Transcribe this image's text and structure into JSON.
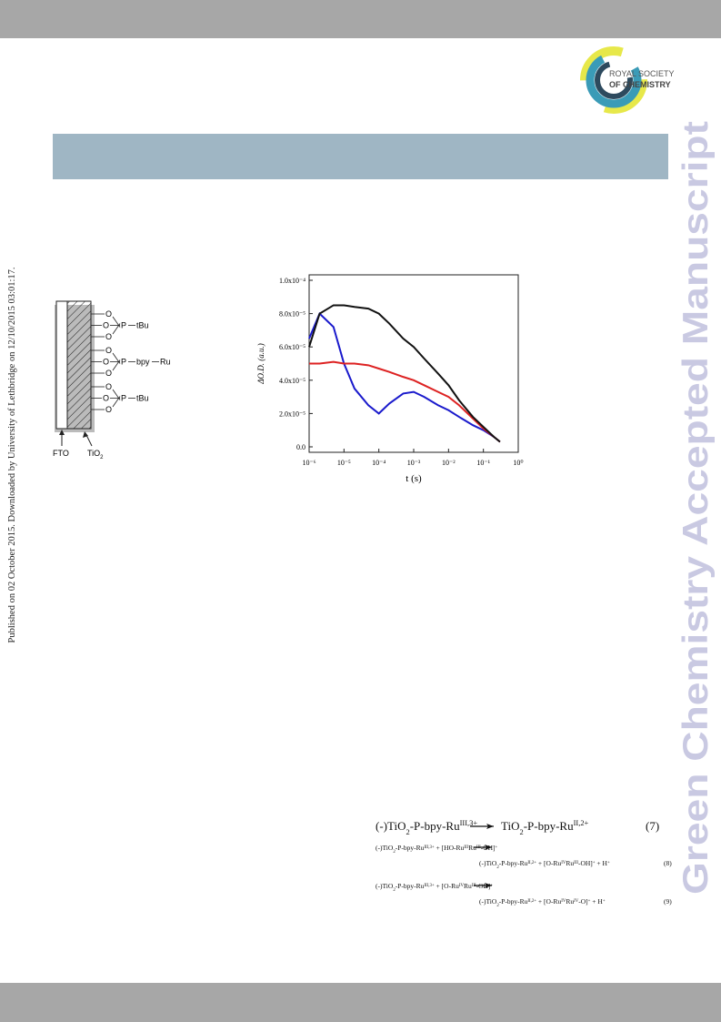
{
  "header": {
    "logo_line1": "ROYAL SOCIETY",
    "logo_line2": "OF CHEMISTRY"
  },
  "side_note": "Published on 02 October 2015. Downloaded by University of Lethbridge on 12/10/2015 03:01:17.",
  "watermark": "Green Chemistry Accepted Manuscript",
  "diagram": {
    "rows": [
      {
        "o": [
          "O",
          "O",
          "O"
        ],
        "p": "P",
        "group": "tBu"
      },
      {
        "o": [
          "O",
          "O",
          "O"
        ],
        "p": "P",
        "group": "bpy",
        "end": "Ru"
      },
      {
        "o": [
          "O",
          "O",
          "O"
        ],
        "p": "P",
        "group": "tBu"
      }
    ],
    "fto": "FTO",
    "tio2": "TiO",
    "tio2_sub": "2"
  },
  "chart_data": {
    "type": "line",
    "x": [
      1e-06,
      2e-06,
      5e-06,
      1e-05,
      2e-05,
      5e-05,
      0.0001,
      0.0002,
      0.0005,
      0.001,
      0.002,
      0.005,
      0.01,
      0.02,
      0.05,
      0.1,
      0.2,
      0.3
    ],
    "xlabel": "t (s)",
    "ylabel": "ΔO.D. (a.u.)",
    "xlog": true,
    "xlim": [
      1e-06,
      1
    ],
    "ylim": [
      0,
      0.0001
    ],
    "xticks": [
      {
        "value": 1e-06,
        "label": "10⁻⁶"
      },
      {
        "value": 1e-05,
        "label": "10⁻⁵"
      },
      {
        "value": 0.0001,
        "label": "10⁻⁴"
      },
      {
        "value": 0.001,
        "label": "10⁻³"
      },
      {
        "value": 0.01,
        "label": "10⁻²"
      },
      {
        "value": 0.1,
        "label": "10⁻¹"
      },
      {
        "value": 1,
        "label": "10⁰"
      }
    ],
    "yticks": [
      {
        "value": 0,
        "label": "0.0"
      },
      {
        "value": 2e-05,
        "label": "2.0x10⁻⁵"
      },
      {
        "value": 4e-05,
        "label": "4.0x10⁻⁵"
      },
      {
        "value": 6e-05,
        "label": "6.0x10⁻⁵"
      },
      {
        "value": 8e-05,
        "label": "8.0x10⁻⁵"
      },
      {
        "value": 0.0001,
        "label": "1.0x10⁻⁴"
      }
    ],
    "series": [
      {
        "color": "#1a1acc",
        "values": [
          6.5e-05,
          8e-05,
          7.2e-05,
          5e-05,
          3.5e-05,
          2.5e-05,
          2e-05,
          2.6e-05,
          3.2e-05,
          3.3e-05,
          3e-05,
          2.5e-05,
          2.2e-05,
          1.8e-05,
          1.3e-05,
          1e-05,
          6e-06,
          3e-06
        ]
      },
      {
        "color": "#dd2222",
        "values": [
          5e-05,
          5e-05,
          5.1e-05,
          5e-05,
          5e-05,
          4.9e-05,
          4.7e-05,
          4.5e-05,
          4.2e-05,
          4e-05,
          3.7e-05,
          3.3e-05,
          3e-05,
          2.5e-05,
          1.7e-05,
          1.1e-05,
          6e-06,
          3e-06
        ]
      },
      {
        "color": "#111111",
        "values": [
          6e-05,
          8e-05,
          8.5e-05,
          8.5e-05,
          8.4e-05,
          8.3e-05,
          8e-05,
          7.4e-05,
          6.5e-05,
          6e-05,
          5.3e-05,
          4.4e-05,
          3.7e-05,
          2.8e-05,
          1.8e-05,
          1.2e-05,
          6e-06,
          3e-06
        ]
      }
    ]
  },
  "equations": [
    {
      "lhs": [
        [
          "(-)TiO",
          "n"
        ],
        [
          "2",
          "sub"
        ],
        [
          "-P-bpy-Ru",
          "n"
        ],
        [
          "III,3+",
          "sup"
        ]
      ],
      "rhs": [
        [
          "TiO",
          "n"
        ],
        [
          "2",
          "sub"
        ],
        [
          "-P-bpy-Ru",
          "n"
        ],
        [
          "II,2+",
          "sup"
        ]
      ],
      "number": "(7)"
    },
    {
      "lhs": [
        [
          "(-)TiO",
          "n"
        ],
        [
          "2",
          "sub"
        ],
        [
          "-P-bpy-Ru",
          "n"
        ],
        [
          "III,3+",
          "sup"
        ],
        [
          "  +  [HO-Ru",
          "n"
        ],
        [
          "III",
          "sup"
        ],
        [
          "Ru",
          "n"
        ],
        [
          "III",
          "sup"
        ],
        [
          "-OH]",
          "n"
        ],
        [
          "+",
          "sup"
        ]
      ],
      "rhs": [
        [
          "(-)TiO",
          "n"
        ],
        [
          "2",
          "sub"
        ],
        [
          "-P-bpy-Ru",
          "n"
        ],
        [
          "II,2+",
          "sup"
        ],
        [
          "  +  [O-Ru",
          "n"
        ],
        [
          "IV",
          "sup"
        ],
        [
          "Ru",
          "n"
        ],
        [
          "III",
          "sup"
        ],
        [
          "-OH]",
          "n"
        ],
        [
          "+",
          "sup"
        ],
        [
          "  +  H",
          "n"
        ],
        [
          "+",
          "sup"
        ]
      ],
      "number": "(8)"
    },
    {
      "lhs": [
        [
          "(-)TiO",
          "n"
        ],
        [
          "2",
          "sub"
        ],
        [
          "-P-bpy-Ru",
          "n"
        ],
        [
          "III,3+",
          "sup"
        ],
        [
          "  +  [O-Ru",
          "n"
        ],
        [
          "IV",
          "sup"
        ],
        [
          "Ru",
          "n"
        ],
        [
          "III",
          "sup"
        ],
        [
          "-OH]",
          "n"
        ],
        [
          "+",
          "sup"
        ]
      ],
      "rhs": [
        [
          "(-)TiO",
          "n"
        ],
        [
          "2",
          "sub"
        ],
        [
          "-P-bpy-Ru",
          "n"
        ],
        [
          "II,2+",
          "sup"
        ],
        [
          "  +  [O-Ru",
          "n"
        ],
        [
          "IV",
          "sup"
        ],
        [
          "Ru",
          "n"
        ],
        [
          "IV",
          "sup"
        ],
        [
          "-O]",
          "n"
        ],
        [
          "+",
          "sup"
        ],
        [
          "  +  H",
          "n"
        ],
        [
          "+",
          "sup"
        ]
      ],
      "number": "(9)"
    }
  ]
}
